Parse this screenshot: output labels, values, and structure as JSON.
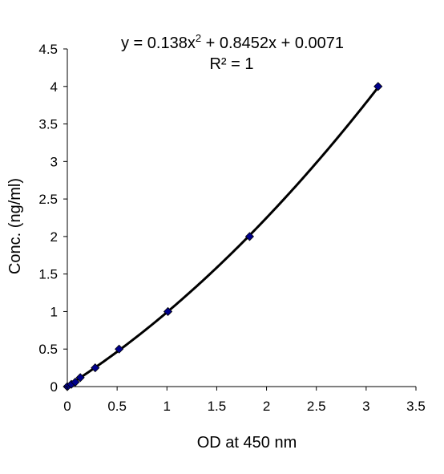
{
  "chart_data": {
    "type": "scatter",
    "title": "",
    "xlabel": "OD at 450 nm",
    "ylabel": "Conc. (ng/ml)",
    "xlim": [
      0,
      3.5
    ],
    "ylim": [
      0,
      4.5
    ],
    "xticks": [
      0,
      0.5,
      1,
      1.5,
      2,
      2.5,
      3,
      3.5
    ],
    "xtick_labels": [
      "0",
      "0.5",
      "1",
      "1.5",
      "2",
      "2.5",
      "3",
      "3.5"
    ],
    "yticks": [
      0,
      0.5,
      1,
      1.5,
      2,
      2.5,
      3,
      3.5,
      4,
      4.5
    ],
    "ytick_labels": [
      "0",
      "0.5",
      "1",
      "1.5",
      "2",
      "2.5",
      "3",
      "3.5",
      "4",
      "4.5"
    ],
    "grid": false,
    "legend": "none",
    "series": [
      {
        "x": [
          0,
          0.04,
          0.08,
          0.13,
          0.28,
          0.52,
          1.01,
          1.83,
          3.12
        ],
        "y": [
          0,
          0.03,
          0.06,
          0.12,
          0.25,
          0.5,
          1,
          2,
          4
        ],
        "marker": "diamond",
        "color": "#00008B"
      }
    ],
    "trendline": {
      "type": "polynomial",
      "coefficients": [
        0.138,
        0.8452,
        0.0071
      ],
      "x_range": [
        0,
        3.12
      ],
      "color": "#000000"
    },
    "annotations": {
      "equation_prefix": "y = 0.138x",
      "equation_exponent": "2",
      "equation_suffix": " + 0.8452x + 0.0071",
      "r_squared": "R² = 1"
    }
  }
}
